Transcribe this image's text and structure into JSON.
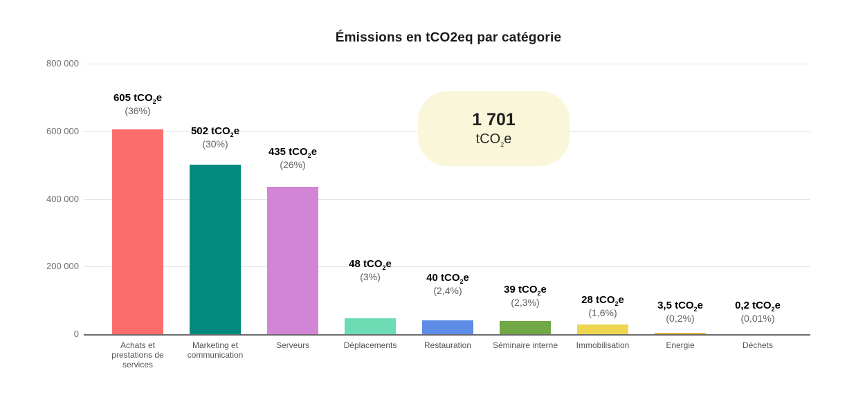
{
  "title": "Émissions en tCO2eq par catégorie",
  "total_box": {
    "value": "1 701",
    "unit": "tCO2e"
  },
  "chart_data": {
    "type": "bar",
    "title": "Émissions en tCO2eq par catégorie",
    "xlabel": "",
    "ylabel": "",
    "grid": true,
    "ylim": [
      0,
      800000
    ],
    "ytick_labels": [
      "800 000",
      "600 000",
      "400 000",
      "200 000",
      "0"
    ],
    "categories": [
      "Achats et prestations de services",
      "Marketing et communication",
      "Serveurs",
      "Déplacements",
      "Restauration",
      "Séminaire interne",
      "Immobilisation",
      "Energie",
      "Déchets"
    ],
    "category_lines": [
      [
        "Achats et",
        "prestations de",
        "services"
      ],
      [
        "Marketing et",
        "communication"
      ],
      [
        "Serveurs"
      ],
      [
        "Déplacements"
      ],
      [
        "Restauration"
      ],
      [
        "Séminaire interne"
      ],
      [
        "Immobilisation"
      ],
      [
        "Energie"
      ],
      [
        "Déchets"
      ]
    ],
    "values_tco2e": [
      605,
      502,
      435,
      48,
      40,
      39,
      28,
      3.5,
      0.2
    ],
    "values_axis_units": [
      605000,
      502000,
      435000,
      48000,
      40000,
      39000,
      28000,
      3500,
      200
    ],
    "value_labels": [
      "605 tCO2e",
      "502 tCO2e",
      "435 tCO2e",
      "48 tCO2e",
      "40 tCO2e",
      "39 tCO2e",
      "28 tCO2e",
      "3,5 tCO2e",
      "0,2 tCO2e"
    ],
    "pct_labels": [
      "(36%)",
      "(30%)",
      "(26%)",
      "(3%)",
      "(2,4%)",
      "(2,3%)",
      "(1,6%)",
      "(0,2%)",
      "(0,01%)"
    ],
    "bar_colors": [
      "#fb6d6a",
      "#028a7e",
      "#d285d6",
      "#6cdcb4",
      "#5e8be6",
      "#70a845",
      "#edd54f",
      "#e5b73e",
      "#e5b73e"
    ],
    "annotation_total": "1 701 tCO2e",
    "legend": "none"
  },
  "colors": {
    "background": "#ffffff",
    "gridline": "#e3e3e3",
    "axis_line": "#6b6b6b",
    "tick_text": "#6e6e6e",
    "pct_text": "#5f5f5f",
    "category_text": "#545454",
    "total_box_bg": "#faf6da",
    "title_text": "#1a1a1a"
  }
}
